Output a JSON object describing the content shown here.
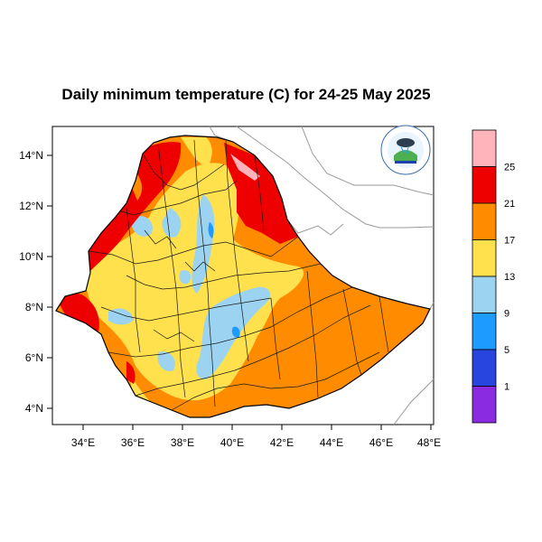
{
  "title": "Daily minimum temperature (C) for 24-25 May 2025",
  "axes": {
    "x_ticks": [
      "34°E",
      "36°E",
      "38°E",
      "40°E",
      "42°E",
      "44°E",
      "46°E",
      "48°E"
    ],
    "y_ticks": [
      "14°N",
      "12°N",
      "10°N",
      "8°N",
      "6°N",
      "4°N"
    ]
  },
  "colorbar": {
    "levels": [
      "25",
      "21",
      "17",
      "13",
      "9",
      "5",
      "1"
    ],
    "colors": [
      "#FFB3BA",
      "#EE0000",
      "#FF8C00",
      "#FFE14D",
      "#9CD3F0",
      "#1E9BFF",
      "#2945E0",
      "#8A2BE2"
    ]
  },
  "logo": {
    "text_top": "የኢትዮጵያ ሜቲዎሮሎጂ ኢንስቲትዩት",
    "text_bottom": "Ethiopian Meteorology Institute"
  }
}
